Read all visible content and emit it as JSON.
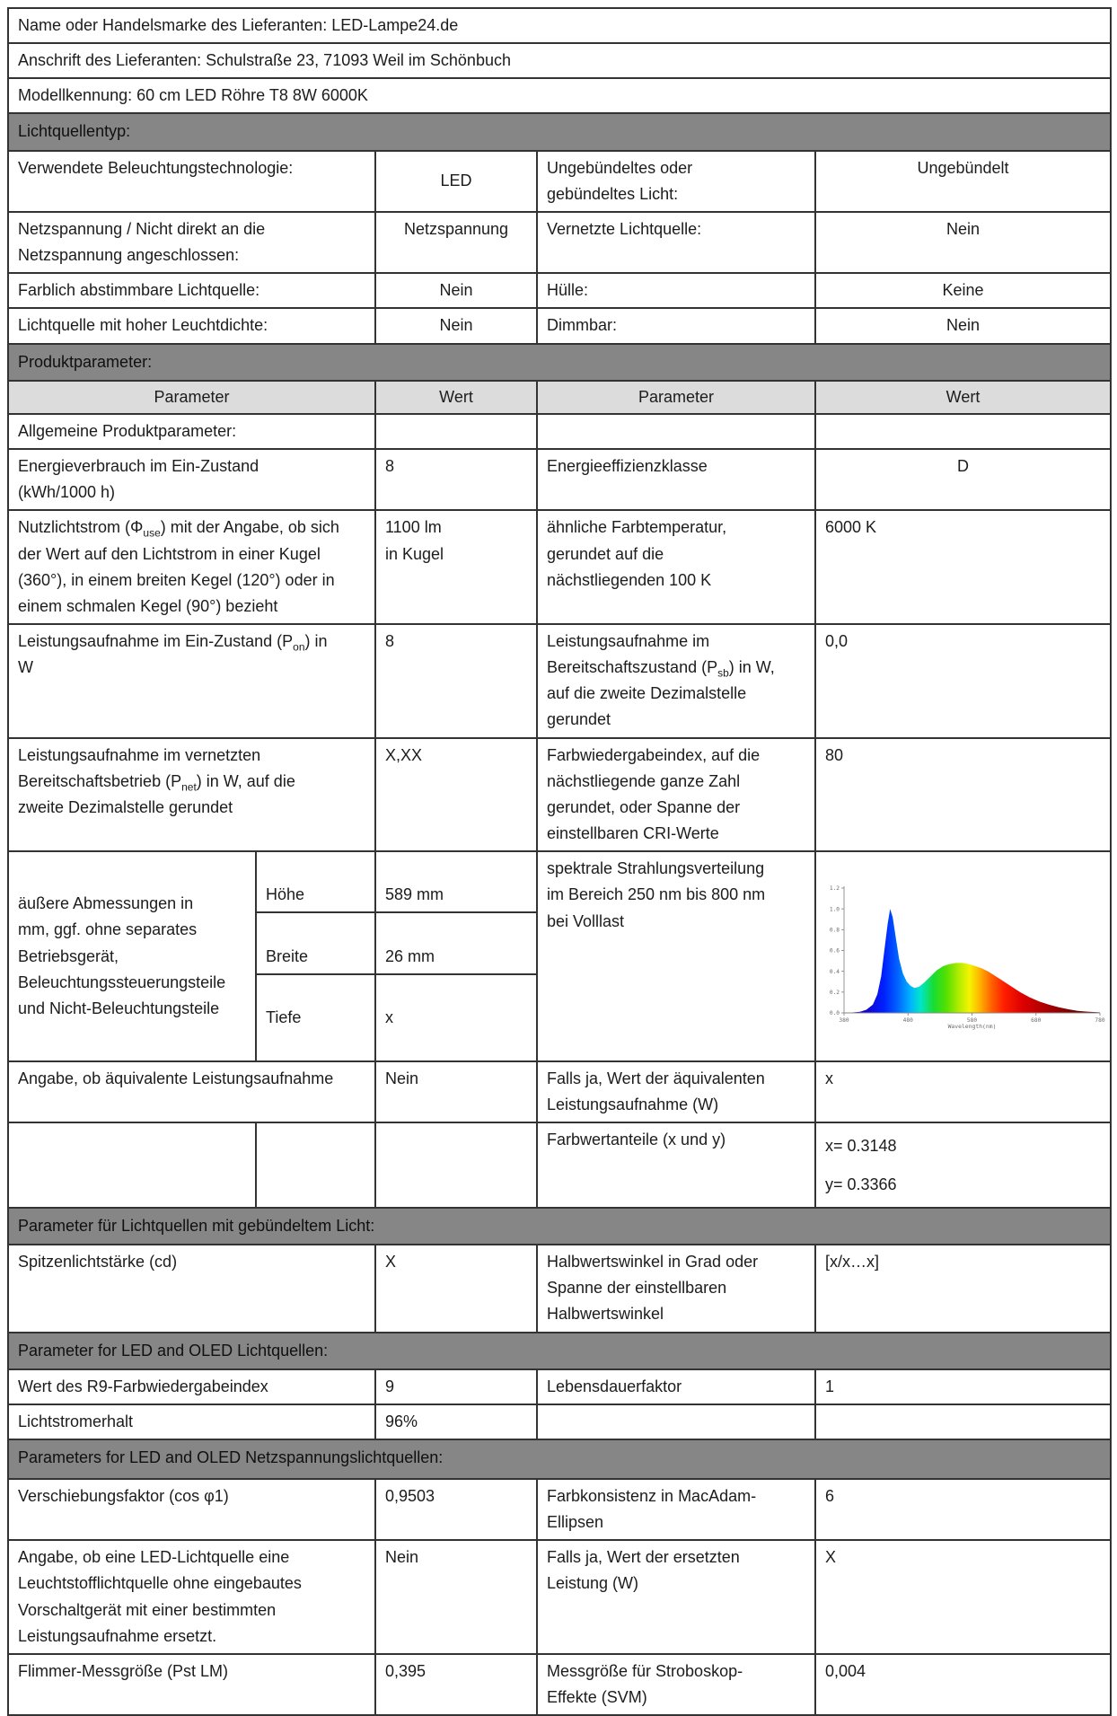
{
  "colors": {
    "section_bar_bg": "#868686",
    "column_header_bg": "#dcdcdc",
    "border": "#333333",
    "text": "#1c1c1c"
  },
  "supplier": {
    "name_row": "Name oder Handelsmarke des Lieferanten: LED-Lampe24.de",
    "address_row": "Anschrift des Lieferanten: Schulstraße 23, 71093 Weil im Schönbuch",
    "model_row": "Modellkennung: 60 cm LED Röhre T8 8W 6000K"
  },
  "lichtquellentyp": {
    "title": "Lichtquellentyp:",
    "rows": [
      {
        "p1": "Verwendete Beleuchtungstechnologie:",
        "v1": "LED",
        "p2": "Ungebündeltes oder\ngebündeltes Licht:",
        "v2": "Ungebündelt"
      },
      {
        "p1": "Netzspannung / Nicht direkt an die\nNetzspannung angeschlossen:",
        "v1": "Netzspannung",
        "p2": "Vernetzte Lichtquelle:",
        "v2": "Nein"
      },
      {
        "p1": "Farblich abstimmbare Lichtquelle:",
        "v1": "Nein",
        "p2": "Hülle:",
        "v2": "Keine"
      },
      {
        "p1": "Lichtquelle mit hoher Leuchtdichte:",
        "v1": "Nein",
        "p2": "Dimmbar:",
        "v2": "Nein"
      }
    ]
  },
  "produktparameter": {
    "title": "Produktparameter:",
    "col_headers": {
      "c1": "Parameter",
      "c2": "Wert",
      "c3": "Parameter",
      "c4": "Wert"
    },
    "subsection": "Allgemeine Produktparameter:",
    "row_energie": {
      "p1": "Energieverbrauch im Ein-Zustand\n(kWh/1000 h)",
      "v1": "8",
      "p2": "Energieeffizienzklasse",
      "v2": "D"
    },
    "row_nutzlichtstrom": {
      "p1_pre": "Nutzlichtstrom (Φ",
      "p1_sub": "use",
      "p1_post": ") mit der Angabe, ob sich\nder Wert auf den Lichtstrom in einer Kugel\n(360°), in einem breiten Kegel (120°) oder in\neinem schmalen Kegel (90°) bezieht",
      "v1": "1100 lm\nin Kugel",
      "p2": "ähnliche Farbtemperatur,\ngerundet auf die\nnächstliegenden 100 K",
      "v2": "6000 K"
    },
    "row_pon": {
      "p1_pre": "Leistungsaufnahme im Ein-Zustand (P",
      "p1_sub": "on",
      "p1_post": ") in\nW",
      "v1": "8",
      "p2_pre": "Leistungsaufnahme im\nBereitschaftszustand (P",
      "p2_sub": "sb",
      "p2_post": ") in W,\nauf die zweite Dezimalstelle\ngerundet",
      "v2": "0,0"
    },
    "row_pnet": {
      "p1_pre": "Leistungsaufnahme im vernetzten\nBereitschaftsbetrieb (P",
      "p1_sub": "net",
      "p1_post": ") in W, auf die\nzweite Dezimalstelle gerundet",
      "v1": "X,XX",
      "p2": "Farbwiedergabeindex, auf die\nnächstliegende ganze Zahl\ngerundet, oder Spanne der\neinstellbaren CRI-Werte",
      "v2": "80"
    },
    "row_dimensions": {
      "label": "äußere Abmessungen in\nmm, ggf. ohne separates\nBetriebsgerät,\nBeleuchtungssteuerungsteile\nund Nicht-Beleuchtungsteile",
      "sub": [
        {
          "k": "Höhe",
          "v": "589 mm"
        },
        {
          "k": "Breite",
          "v": "26 mm"
        },
        {
          "k": "Tiefe",
          "v": "x"
        }
      ],
      "p2": "spektrale Strahlungsverteilung\nim Bereich 250 nm bis 800 nm\nbei Volllast"
    },
    "row_aequivalent": {
      "p1": "Angabe, ob äquivalente Leistungsaufnahme",
      "v1": "Nein",
      "p2": "Falls ja, Wert der äquivalenten\nLeistungsaufnahme (W)",
      "v2": "x"
    },
    "row_farbwert": {
      "p2": "Farbwertanteile (x und y)",
      "v2": "x= 0.3148\ny= 0.3366"
    }
  },
  "gebuendelt": {
    "title": "Parameter für Lichtquellen mit gebündeltem Licht:",
    "row": {
      "p1": "Spitzenlichtstärke (cd)",
      "v1": "X",
      "p2": "Halbwertswinkel in Grad oder\nSpanne der einstellbaren\nHalbwertswinkel",
      "v2": "[x/x…x]"
    }
  },
  "led_oled": {
    "title": "Parameter for LED and OLED Lichtquellen:",
    "rows": [
      {
        "p1": "Wert des R9-Farbwiedergabeindex",
        "v1": "9",
        "p2": "Lebensdauerfaktor",
        "v2": "1"
      },
      {
        "p1": "Lichtstromerhalt",
        "v1": "96%",
        "p2": "",
        "v2": ""
      }
    ]
  },
  "netzspannung": {
    "title": "Parameters for LED and OLED Netzspannungslichtquellen:",
    "rows": [
      {
        "p1": "Verschiebungsfaktor (cos φ1)",
        "v1": "0,9503",
        "p2": "Farbkonsistenz in MacAdam-\nEllipsen",
        "v2": "6"
      },
      {
        "p1": "Angabe, ob eine LED-Lichtquelle eine\nLeuchtstofflichtquelle ohne eingebautes\nVorschaltgerät mit einer bestimmten\nLeistungsaufnahme ersetzt.",
        "v1": "Nein",
        "p2": "Falls ja, Wert der ersetzten\nLeistung (W)",
        "v2": "X"
      },
      {
        "p1": "Flimmer-Messgröße (Pst LM)",
        "v1": "0,395",
        "p2": "Messgröße für Stroboskop-\nEffekte (SVM)",
        "v2": "0,004"
      }
    ]
  },
  "chart_data": {
    "type": "area",
    "title": "spektrale Strahlungsverteilung bei Volllast",
    "xlabel": "Wavelength(nm)",
    "ylabel": "",
    "xlim": [
      380,
      780
    ],
    "ylim": [
      0,
      1.2
    ],
    "x_ticks": [
      380,
      480,
      580,
      680,
      780
    ],
    "y_ticks": [
      0,
      0.2,
      0.4,
      0.6,
      0.8,
      1.0,
      1.2
    ],
    "grid": false,
    "legend": "none",
    "x": [
      380,
      395,
      405,
      415,
      425,
      432,
      438,
      443,
      448,
      452,
      456,
      461,
      466,
      472,
      478,
      484,
      490,
      497,
      505,
      515,
      525,
      535,
      545,
      555,
      565,
      575,
      585,
      595,
      605,
      615,
      625,
      640,
      655,
      670,
      685,
      700,
      715,
      730,
      745,
      760,
      780
    ],
    "values": [
      0,
      0.005,
      0.01,
      0.03,
      0.08,
      0.18,
      0.35,
      0.6,
      0.85,
      1.0,
      0.92,
      0.72,
      0.52,
      0.38,
      0.3,
      0.26,
      0.24,
      0.25,
      0.29,
      0.35,
      0.41,
      0.45,
      0.47,
      0.48,
      0.48,
      0.47,
      0.45,
      0.43,
      0.4,
      0.36,
      0.32,
      0.26,
      0.2,
      0.15,
      0.11,
      0.08,
      0.055,
      0.035,
      0.02,
      0.012,
      0.005
    ],
    "gradient": [
      {
        "offset": 0,
        "color": "#2b0080"
      },
      {
        "offset": 0.08,
        "color": "#1500c8"
      },
      {
        "offset": 0.155,
        "color": "#0020ff"
      },
      {
        "offset": 0.21,
        "color": "#0064ff"
      },
      {
        "offset": 0.26,
        "color": "#00b4ff"
      },
      {
        "offset": 0.3,
        "color": "#00e6c8"
      },
      {
        "offset": 0.35,
        "color": "#19dc32"
      },
      {
        "offset": 0.4,
        "color": "#55e000"
      },
      {
        "offset": 0.45,
        "color": "#b4ec00"
      },
      {
        "offset": 0.49,
        "color": "#f5f500"
      },
      {
        "offset": 0.53,
        "color": "#ffb400"
      },
      {
        "offset": 0.575,
        "color": "#ff6400"
      },
      {
        "offset": 0.625,
        "color": "#ff1e00"
      },
      {
        "offset": 0.7,
        "color": "#dc0000"
      },
      {
        "offset": 0.8,
        "color": "#a50000"
      },
      {
        "offset": 0.9,
        "color": "#730000"
      },
      {
        "offset": 1,
        "color": "#4a0000"
      }
    ]
  }
}
